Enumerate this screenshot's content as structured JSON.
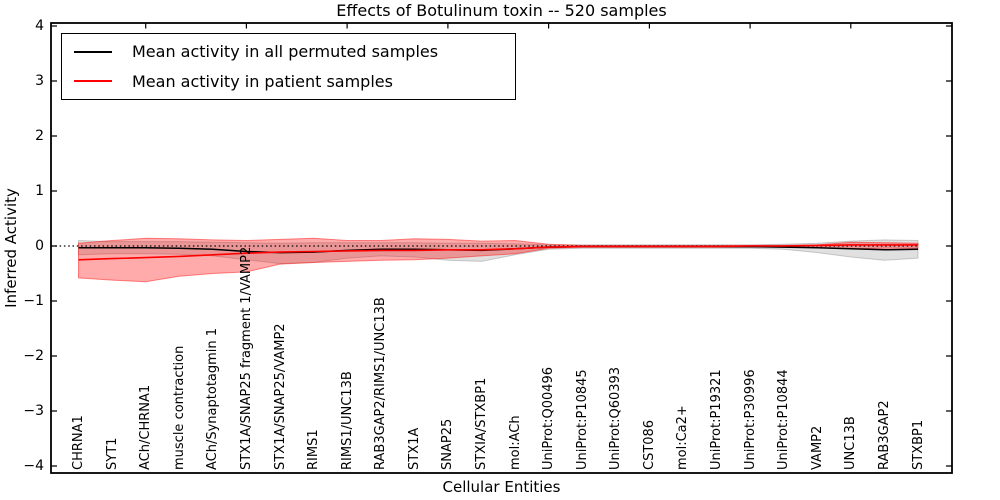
{
  "chart_data": {
    "type": "line",
    "title": "Effects of Botulinum toxin -- 520 samples",
    "xlabel": "Cellular Entities",
    "ylabel": "Inferred Activity",
    "ylim": [
      -4,
      4
    ],
    "yticks": [
      "4",
      "3",
      "2",
      "1",
      "0",
      "−1",
      "−2",
      "−3",
      "−4"
    ],
    "grid": false,
    "legend_position": "upper left",
    "zero_reference_line": true,
    "categories": [
      "CHRNA1",
      "SYT1",
      "ACh/CHRNA1",
      "muscle contraction",
      "ACh/Synaptotagmin 1",
      "STX1A/SNAP25 fragment 1/VAMP2",
      "STX1A/SNAP25/VAMP2",
      "RIMS1",
      "RIMS1/UNC13B",
      "RAB3GAP2/RIMS1/UNC13B",
      "STX1A",
      "SNAP25",
      "STXIA/STXBP1",
      "mol:ACh",
      "UniProt:Q00496",
      "UniProt:P10845",
      "UniProt:Q60393",
      "CST086",
      "mol:Ca2+",
      "UniProt:P19321",
      "UniProt:P30996",
      "UniProt:P10844",
      "VAMP2",
      "UNC13B",
      "RAB3GAP2",
      "STXBP1"
    ],
    "series": [
      {
        "name": "Mean activity in all permuted samples",
        "color": "#000000",
        "band_fill": "rgba(0,0,0,0.12)",
        "band_stroke": "rgba(0,0,0,0.18)",
        "values": [
          -0.03,
          -0.03,
          -0.03,
          -0.04,
          -0.06,
          -0.1,
          -0.12,
          -0.11,
          -0.08,
          -0.06,
          -0.06,
          -0.07,
          -0.08,
          -0.05,
          -0.02,
          -0.01,
          -0.01,
          -0.01,
          -0.01,
          -0.01,
          -0.01,
          -0.02,
          -0.03,
          -0.05,
          -0.07,
          -0.06
        ],
        "band_upper": [
          0.1,
          0.08,
          0.08,
          0.08,
          0.07,
          0.06,
          0.05,
          0.06,
          0.06,
          0.06,
          0.06,
          0.05,
          0.05,
          0.04,
          0.02,
          0.02,
          0.02,
          0.02,
          0.02,
          0.02,
          0.02,
          0.03,
          0.05,
          0.09,
          0.11,
          0.1
        ],
        "band_lower": [
          -0.16,
          -0.14,
          -0.14,
          -0.15,
          -0.18,
          -0.25,
          -0.32,
          -0.3,
          -0.22,
          -0.18,
          -0.2,
          -0.26,
          -0.28,
          -0.16,
          -0.06,
          -0.04,
          -0.04,
          -0.04,
          -0.04,
          -0.04,
          -0.04,
          -0.06,
          -0.12,
          -0.2,
          -0.26,
          -0.22
        ]
      },
      {
        "name": "Mean activity in patient samples",
        "color": "#ff0000",
        "band_fill": "rgba(255,0,0,0.33)",
        "band_stroke": "rgba(255,0,0,0.45)",
        "values": [
          -0.25,
          -0.23,
          -0.21,
          -0.19,
          -0.16,
          -0.13,
          -0.11,
          -0.1,
          -0.09,
          -0.08,
          -0.08,
          -0.07,
          -0.07,
          -0.05,
          -0.02,
          -0.01,
          -0.01,
          -0.01,
          -0.01,
          -0.01,
          0.0,
          0.0,
          0.01,
          0.02,
          0.02,
          0.02
        ],
        "band_upper": [
          0.05,
          0.1,
          0.14,
          0.13,
          0.11,
          0.1,
          0.12,
          0.14,
          0.1,
          0.1,
          0.13,
          0.12,
          0.09,
          0.1,
          0.03,
          0.01,
          0.01,
          0.01,
          0.01,
          0.01,
          0.01,
          0.01,
          0.02,
          0.07,
          0.06,
          0.05
        ],
        "band_lower": [
          -0.58,
          -0.62,
          -0.65,
          -0.55,
          -0.5,
          -0.47,
          -0.33,
          -0.3,
          -0.28,
          -0.26,
          -0.25,
          -0.22,
          -0.18,
          -0.14,
          -0.04,
          -0.02,
          -0.02,
          -0.02,
          -0.02,
          -0.02,
          -0.02,
          -0.02,
          -0.03,
          -0.05,
          -0.04,
          -0.04
        ]
      }
    ]
  }
}
